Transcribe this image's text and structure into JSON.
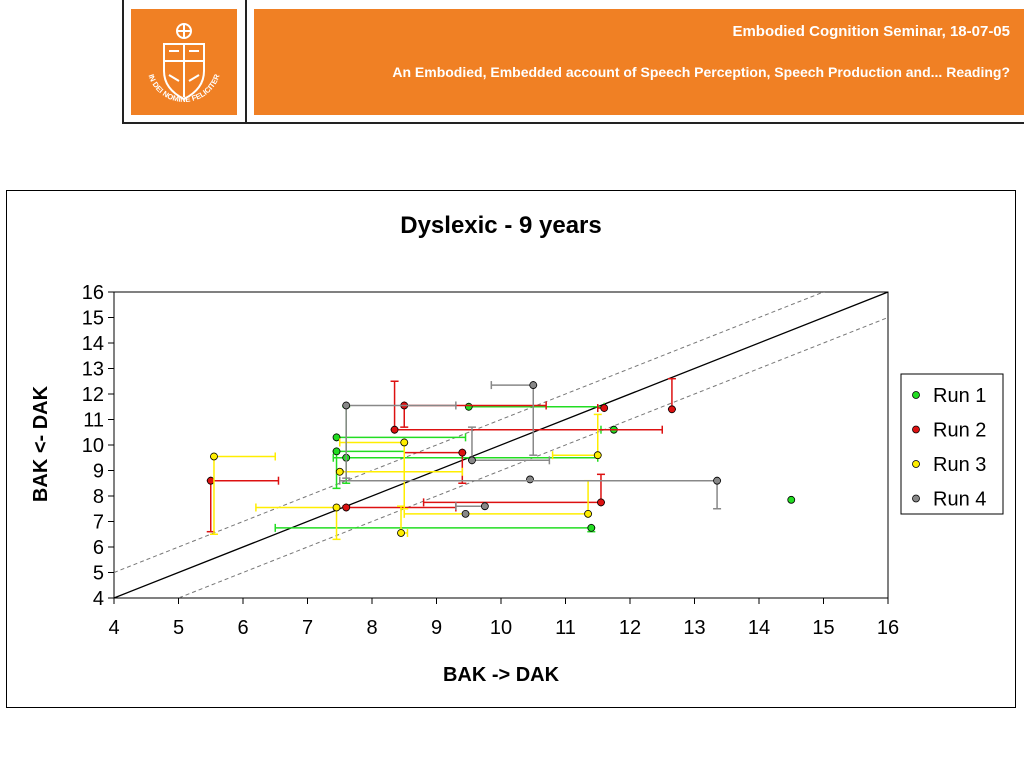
{
  "header": {
    "seminar": "Embodied Cognition Seminar, 18-07-05",
    "subtitle": "An Embodied, Embedded account of Speech Perception, Speech Production and... Reading?",
    "logo_motto": "IN DEI NOMINE FELICITER",
    "logo_icon": "university-seal-icon",
    "brand_color": "#f08024"
  },
  "chart_data": {
    "type": "scatter",
    "title": "Dyslexic - 9 years",
    "xlabel": "BAK -> DAK",
    "ylabel": "BAK <- DAK",
    "xlim": [
      4,
      16
    ],
    "ylim": [
      4,
      16
    ],
    "xticks": [
      "4",
      "5",
      "6",
      "7",
      "8",
      "9",
      "10",
      "11",
      "12",
      "13",
      "14",
      "15",
      "16"
    ],
    "yticks": [
      "4",
      "5",
      "6",
      "7",
      "8",
      "9",
      "10",
      "11",
      "12",
      "13",
      "14",
      "15",
      "16"
    ],
    "grid": false,
    "legend_position": "right",
    "reference_lines": [
      {
        "style": "solid",
        "offset": 0
      },
      {
        "style": "dashed",
        "offset": 1
      },
      {
        "style": "dashed",
        "offset": -1
      }
    ],
    "series": [
      {
        "name": "Run 1",
        "color": "#22dd22",
        "points": [
          {
            "x": 7.6,
            "y": 9.5,
            "xerr": [
              7.4,
              11.5
            ],
            "yerr": [
              8.5,
              11.5
            ]
          },
          {
            "x": 7.45,
            "y": 10.3,
            "xerr": [
              7.45,
              9.45
            ]
          },
          {
            "x": 7.45,
            "y": 9.75,
            "xerr": [
              7.45,
              8.5
            ],
            "yerr": [
              8.3,
              9.75
            ]
          },
          {
            "x": 9.5,
            "y": 11.5,
            "xerr": [
              9.5,
              11.6
            ]
          },
          {
            "x": 11.75,
            "y": 10.6,
            "xerr": [
              11.55,
              11.75
            ]
          },
          {
            "x": 11.4,
            "y": 6.75,
            "xerr": [
              6.5,
              11.4
            ],
            "yerr": [
              6.6,
              6.75
            ]
          },
          {
            "x": 14.5,
            "y": 7.85
          }
        ]
      },
      {
        "name": "Run 2",
        "color": "#dd1111",
        "points": [
          {
            "x": 5.5,
            "y": 8.6,
            "xerr": [
              5.5,
              6.55
            ],
            "yerr": [
              6.6,
              8.6
            ]
          },
          {
            "x": 8.5,
            "y": 11.55,
            "xerr": [
              8.5,
              10.7
            ],
            "yerr": [
              10.7,
              11.55
            ]
          },
          {
            "x": 8.35,
            "y": 10.6,
            "xerr": [
              8.35,
              12.5
            ],
            "yerr": [
              10.6,
              12.5
            ]
          },
          {
            "x": 9.4,
            "y": 9.7,
            "xerr": [
              8.5,
              9.4
            ],
            "yerr": [
              8.5,
              9.7
            ]
          },
          {
            "x": 11.6,
            "y": 11.45,
            "xerr": [
              11.5,
              11.6
            ]
          },
          {
            "x": 12.65,
            "y": 11.4,
            "yerr": [
              11.4,
              12.6
            ]
          },
          {
            "x": 7.6,
            "y": 7.55,
            "xerr": [
              7.6,
              9.3
            ],
            "yerr": [
              7.55,
              7.6
            ]
          },
          {
            "x": 11.55,
            "y": 7.75,
            "xerr": [
              8.8,
              11.55
            ],
            "yerr": [
              7.75,
              8.85
            ]
          }
        ]
      },
      {
        "name": "Run 3",
        "color": "#ffee00",
        "points": [
          {
            "x": 5.55,
            "y": 9.55,
            "xerr": [
              5.55,
              6.5
            ],
            "yerr": [
              6.5,
              9.55
            ]
          },
          {
            "x": 8.5,
            "y": 10.1,
            "xerr": [
              7.5,
              8.5
            ],
            "yerr": [
              7.5,
              10.1
            ]
          },
          {
            "x": 7.5,
            "y": 8.95,
            "xerr": [
              7.5,
              9.4
            ],
            "yerr": [
              8.9,
              9.0
            ]
          },
          {
            "x": 11.5,
            "y": 9.6,
            "xerr": [
              10.8,
              11.5
            ],
            "yerr": [
              9.6,
              11.2
            ]
          },
          {
            "x": 11.35,
            "y": 7.3,
            "xerr": [
              8.5,
              11.35
            ],
            "yerr": [
              7.3,
              8.6
            ]
          },
          {
            "x": 8.45,
            "y": 6.55,
            "xerr": [
              8.45,
              8.55
            ],
            "yerr": [
              6.55,
              7.6
            ]
          },
          {
            "x": 7.45,
            "y": 7.55,
            "xerr": [
              6.2,
              7.45
            ],
            "yerr": [
              6.3,
              7.55
            ]
          }
        ]
      },
      {
        "name": "Run 4",
        "color": "#888888",
        "points": [
          {
            "x": 7.6,
            "y": 11.55,
            "xerr": [
              7.6,
              9.3
            ],
            "yerr": [
              8.7,
              11.55
            ]
          },
          {
            "x": 10.5,
            "y": 12.35,
            "xerr": [
              9.85,
              10.5
            ],
            "yerr": [
              9.6,
              12.35
            ]
          },
          {
            "x": 9.55,
            "y": 9.4,
            "xerr": [
              9.55,
              10.75
            ],
            "yerr": [
              9.4,
              10.7
            ]
          },
          {
            "x": 10.45,
            "y": 8.65
          },
          {
            "x": 13.35,
            "y": 8.6,
            "xerr": [
              7.5,
              13.35
            ],
            "yerr": [
              7.5,
              8.6
            ]
          },
          {
            "x": 9.75,
            "y": 7.6,
            "xerr": [
              9.3,
              9.75
            ]
          },
          {
            "x": 9.45,
            "y": 7.3
          }
        ]
      }
    ]
  }
}
